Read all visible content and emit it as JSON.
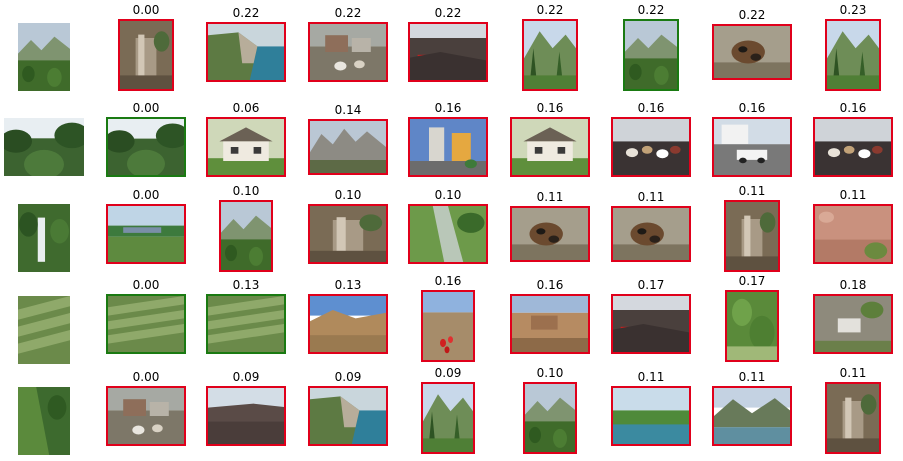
{
  "colors": {
    "match_border": "#1a7a12",
    "nonmatch_border": "#e0001b"
  },
  "rows": [
    {
      "query_scene": "mountain-valley",
      "results": [
        {
          "score": "0.00",
          "match": false,
          "scene": "tree-stump"
        },
        {
          "score": "0.22",
          "match": false,
          "scene": "coast-cliff"
        },
        {
          "score": "0.22",
          "match": false,
          "scene": "village-goats"
        },
        {
          "score": "0.22",
          "match": false,
          "scene": "lava-sign"
        },
        {
          "score": "0.22",
          "match": false,
          "scene": "mountain-forest"
        },
        {
          "score": "0.22",
          "match": true,
          "scene": "mountain-valley"
        },
        {
          "score": "0.22",
          "match": false,
          "scene": "dog"
        },
        {
          "score": "0.23",
          "match": false,
          "scene": "mountain-forest"
        }
      ]
    },
    {
      "query_scene": "jungle-view",
      "results": [
        {
          "score": "0.00",
          "match": true,
          "scene": "jungle-view"
        },
        {
          "score": "0.06",
          "match": false,
          "scene": "house"
        },
        {
          "score": "0.14",
          "match": false,
          "scene": "rocky-mountains"
        },
        {
          "score": "0.16",
          "match": false,
          "scene": "city-street"
        },
        {
          "score": "0.16",
          "match": false,
          "scene": "house"
        },
        {
          "score": "0.16",
          "match": false,
          "scene": "crowd"
        },
        {
          "score": "0.16",
          "match": false,
          "scene": "street-car"
        },
        {
          "score": "0.16",
          "match": false,
          "scene": "crowd"
        }
      ]
    },
    {
      "query_scene": "waterfall",
      "results": [
        {
          "score": "0.00",
          "match": false,
          "scene": "lake-town"
        },
        {
          "score": "0.10",
          "match": false,
          "scene": "mountain-valley"
        },
        {
          "score": "0.10",
          "match": false,
          "scene": "tree-stump"
        },
        {
          "score": "0.10",
          "match": false,
          "scene": "forest-stream"
        },
        {
          "score": "0.11",
          "match": false,
          "scene": "dog"
        },
        {
          "score": "0.11",
          "match": false,
          "scene": "dog"
        },
        {
          "score": "0.11",
          "match": false,
          "scene": "tree-stump"
        },
        {
          "score": "0.11",
          "match": false,
          "scene": "red-canyon"
        }
      ]
    },
    {
      "query_scene": "terraces",
      "results": [
        {
          "score": "0.00",
          "match": true,
          "scene": "terraces"
        },
        {
          "score": "0.13",
          "match": true,
          "scene": "terraces"
        },
        {
          "score": "0.13",
          "match": false,
          "scene": "desert-hills"
        },
        {
          "score": "0.16",
          "match": false,
          "scene": "desert-flowers"
        },
        {
          "score": "0.16",
          "match": false,
          "scene": "desert-ruins"
        },
        {
          "score": "0.17",
          "match": false,
          "scene": "lava-sign"
        },
        {
          "score": "0.17",
          "match": false,
          "scene": "green-plants"
        },
        {
          "score": "0.18",
          "match": false,
          "scene": "rubble"
        }
      ]
    },
    {
      "query_scene": "cliff-path",
      "results": [
        {
          "score": "0.00",
          "match": false,
          "scene": "village-goats"
        },
        {
          "score": "0.09",
          "match": false,
          "scene": "lava-field"
        },
        {
          "score": "0.09",
          "match": false,
          "scene": "coast-cliff"
        },
        {
          "score": "0.09",
          "match": false,
          "scene": "mountain-forest"
        },
        {
          "score": "0.10",
          "match": false,
          "scene": "mountain-valley"
        },
        {
          "score": "0.11",
          "match": false,
          "scene": "lagoon"
        },
        {
          "score": "0.11",
          "match": false,
          "scene": "mountain-lake"
        },
        {
          "score": "0.11",
          "match": false,
          "scene": "tree-stump"
        }
      ]
    }
  ]
}
